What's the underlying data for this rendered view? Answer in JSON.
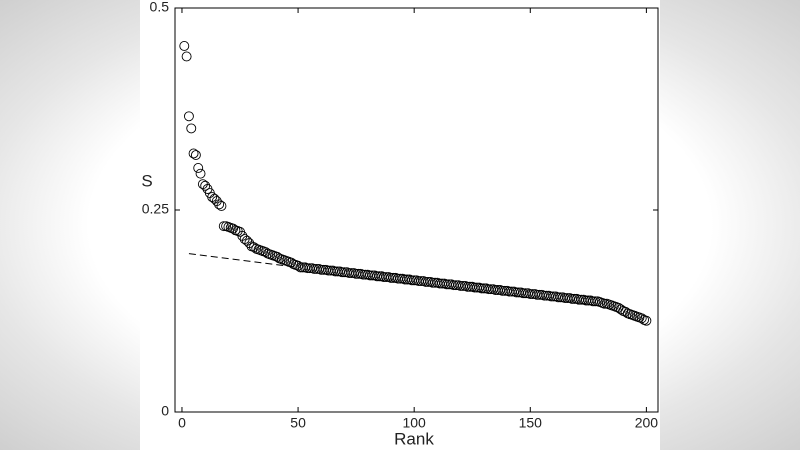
{
  "chart_data": {
    "type": "scatter",
    "xlabel": "Rank",
    "ylabel": "S",
    "xlim": [
      -3,
      205
    ],
    "ylim": [
      0,
      0.5
    ],
    "xticks": [
      0,
      50,
      100,
      150,
      200
    ],
    "yticks": [
      0,
      0.25,
      0.5
    ],
    "series": [
      {
        "type": "scatter",
        "color": "#000000",
        "x": [
          1,
          2,
          3,
          4,
          5,
          6,
          7,
          8,
          9,
          10,
          11,
          12,
          13,
          14,
          15,
          16,
          17,
          18,
          19,
          20,
          21,
          22,
          23,
          24,
          25,
          26,
          27,
          28,
          29,
          30,
          31,
          32,
          33,
          34,
          35,
          36,
          37,
          38,
          39,
          40,
          41,
          42,
          43,
          44,
          45,
          46,
          47,
          48,
          49,
          50,
          51,
          52,
          53,
          54,
          55,
          56,
          57,
          58,
          59,
          60,
          61,
          62,
          63,
          64,
          65,
          66,
          67,
          68,
          69,
          70,
          71,
          72,
          73,
          74,
          75,
          76,
          77,
          78,
          79,
          80,
          81,
          82,
          83,
          84,
          85,
          86,
          87,
          88,
          89,
          90,
          91,
          92,
          93,
          94,
          95,
          96,
          97,
          98,
          99,
          100,
          101,
          102,
          103,
          104,
          105,
          106,
          107,
          108,
          109,
          110,
          111,
          112,
          113,
          114,
          115,
          116,
          117,
          118,
          119,
          120,
          121,
          122,
          123,
          124,
          125,
          126,
          127,
          128,
          129,
          130,
          131,
          132,
          133,
          134,
          135,
          136,
          137,
          138,
          139,
          140,
          141,
          142,
          143,
          144,
          145,
          146,
          147,
          148,
          149,
          150,
          151,
          152,
          153,
          154,
          155,
          156,
          157,
          158,
          159,
          160,
          161,
          162,
          163,
          164,
          165,
          166,
          167,
          168,
          169,
          170,
          171,
          172,
          173,
          174,
          175,
          176,
          177,
          178,
          179,
          180,
          181,
          182,
          183,
          184,
          185,
          186,
          187,
          188,
          189,
          190,
          191,
          192,
          193,
          194,
          195,
          196,
          197,
          198,
          199,
          200
        ],
        "values": [
          0.453,
          0.44,
          0.366,
          0.351,
          0.32,
          0.318,
          0.302,
          0.295,
          0.282,
          0.28,
          0.276,
          0.271,
          0.266,
          0.264,
          0.261,
          0.257,
          0.255,
          0.23,
          0.23,
          0.229,
          0.228,
          0.227,
          0.225,
          0.224,
          0.223,
          0.218,
          0.214,
          0.212,
          0.209,
          0.205,
          0.204,
          0.202,
          0.201,
          0.2,
          0.199,
          0.198,
          0.196,
          0.195,
          0.194,
          0.193,
          0.192,
          0.19,
          0.189,
          0.188,
          0.187,
          0.186,
          0.185,
          0.183,
          0.182,
          0.181,
          0.179,
          0.179,
          0.179,
          0.178,
          0.178,
          0.178,
          0.177,
          0.177,
          0.177,
          0.176,
          0.176,
          0.176,
          0.175,
          0.175,
          0.175,
          0.174,
          0.174,
          0.174,
          0.173,
          0.173,
          0.173,
          0.172,
          0.172,
          0.172,
          0.171,
          0.171,
          0.171,
          0.17,
          0.17,
          0.17,
          0.169,
          0.169,
          0.169,
          0.168,
          0.168,
          0.168,
          0.167,
          0.167,
          0.167,
          0.166,
          0.166,
          0.166,
          0.165,
          0.165,
          0.165,
          0.164,
          0.164,
          0.164,
          0.163,
          0.163,
          0.163,
          0.162,
          0.162,
          0.162,
          0.161,
          0.161,
          0.161,
          0.16,
          0.16,
          0.16,
          0.159,
          0.159,
          0.159,
          0.158,
          0.158,
          0.158,
          0.157,
          0.157,
          0.157,
          0.156,
          0.156,
          0.156,
          0.155,
          0.155,
          0.155,
          0.154,
          0.154,
          0.154,
          0.153,
          0.153,
          0.153,
          0.152,
          0.152,
          0.152,
          0.151,
          0.151,
          0.151,
          0.15,
          0.15,
          0.15,
          0.149,
          0.149,
          0.149,
          0.148,
          0.148,
          0.148,
          0.147,
          0.147,
          0.147,
          0.146,
          0.146,
          0.146,
          0.145,
          0.145,
          0.145,
          0.144,
          0.144,
          0.144,
          0.143,
          0.143,
          0.143,
          0.142,
          0.142,
          0.142,
          0.141,
          0.141,
          0.141,
          0.14,
          0.14,
          0.14,
          0.139,
          0.139,
          0.139,
          0.138,
          0.138,
          0.138,
          0.137,
          0.137,
          0.137,
          0.136,
          0.135,
          0.134,
          0.134,
          0.133,
          0.132,
          0.131,
          0.13,
          0.129,
          0.127,
          0.125,
          0.124,
          0.122,
          0.121,
          0.12,
          0.119,
          0.118,
          0.117,
          0.116,
          0.114,
          0.113
        ]
      },
      {
        "type": "line",
        "style": "dashed",
        "color": "#000000",
        "x": [
          3,
          50
        ],
        "values": [
          0.196,
          0.179
        ]
      }
    ]
  }
}
